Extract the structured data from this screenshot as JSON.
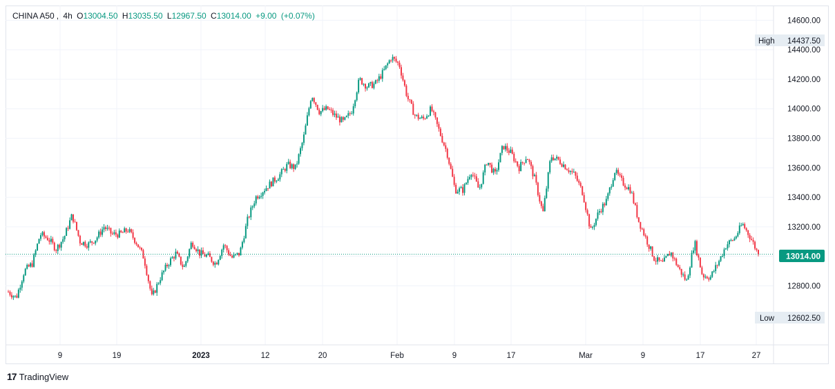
{
  "legend": {
    "symbol": "CHINA A50",
    "interval": "4h",
    "open_label": "O",
    "open": "13004.50",
    "high_label": "H",
    "high": "13035.50",
    "low_label": "L",
    "low": "12967.50",
    "close_label": "C",
    "close": "13014.00",
    "change": "+9.00",
    "change_pct": "(+0.07%)"
  },
  "colors": {
    "up": "#089981",
    "down": "#f23645",
    "grid": "#f0f3fa",
    "border": "#e0e3eb",
    "price_line": "#089981"
  },
  "tags": {
    "high_label": "High",
    "high_value": "14437.50",
    "low_label": "Low",
    "low_value": "12602.50",
    "last_value": "13014.00"
  },
  "brand": {
    "logo_mark": "17",
    "name": "TradingView"
  },
  "chart_data": {
    "type": "candlestick",
    "ylim": [
      12400,
      14700
    ],
    "y_ticks": [
      "12800.00",
      "13000.00",
      "13200.00",
      "13400.00",
      "13600.00",
      "13800.00",
      "14000.00",
      "14200.00",
      "14400.00",
      "14600.00"
    ],
    "x_ticks": [
      "9",
      "19",
      "2023",
      "12",
      "20",
      "Feb",
      "9",
      "17",
      "Mar",
      "9",
      "17",
      "27"
    ],
    "grid": true,
    "current_price": 13014.0,
    "period_high": 14437.5,
    "period_low": 12602.5,
    "approx_close_path": [
      12760,
      12720,
      12900,
      12950,
      13150,
      13120,
      13050,
      13130,
      13280,
      13100,
      13080,
      13120,
      13200,
      13150,
      13150,
      13180,
      13100,
      12990,
      12720,
      12850,
      12950,
      13020,
      12920,
      13100,
      13020,
      13000,
      12950,
      13080,
      12990,
      13020,
      13250,
      13400,
      13450,
      13500,
      13550,
      13620,
      13600,
      13800,
      14100,
      13980,
      14000,
      13950,
      13910,
      13980,
      14200,
      14150,
      14170,
      14250,
      14350,
      14300,
      14080,
      13950,
      13930,
      14000,
      13850,
      13700,
      13450,
      13450,
      13580,
      13450,
      13650,
      13550,
      13750,
      13700,
      13600,
      13680,
      13520,
      13290,
      13680,
      13650,
      13600,
      13550,
      13430,
      13170,
      13300,
      13380,
      13580,
      13500,
      13450,
      13240,
      13110,
      12980,
      12950,
      13030,
      12920,
      12830,
      13100,
      12870,
      12860,
      12960,
      13080,
      13120,
      13220,
      13130,
      13014
    ]
  }
}
